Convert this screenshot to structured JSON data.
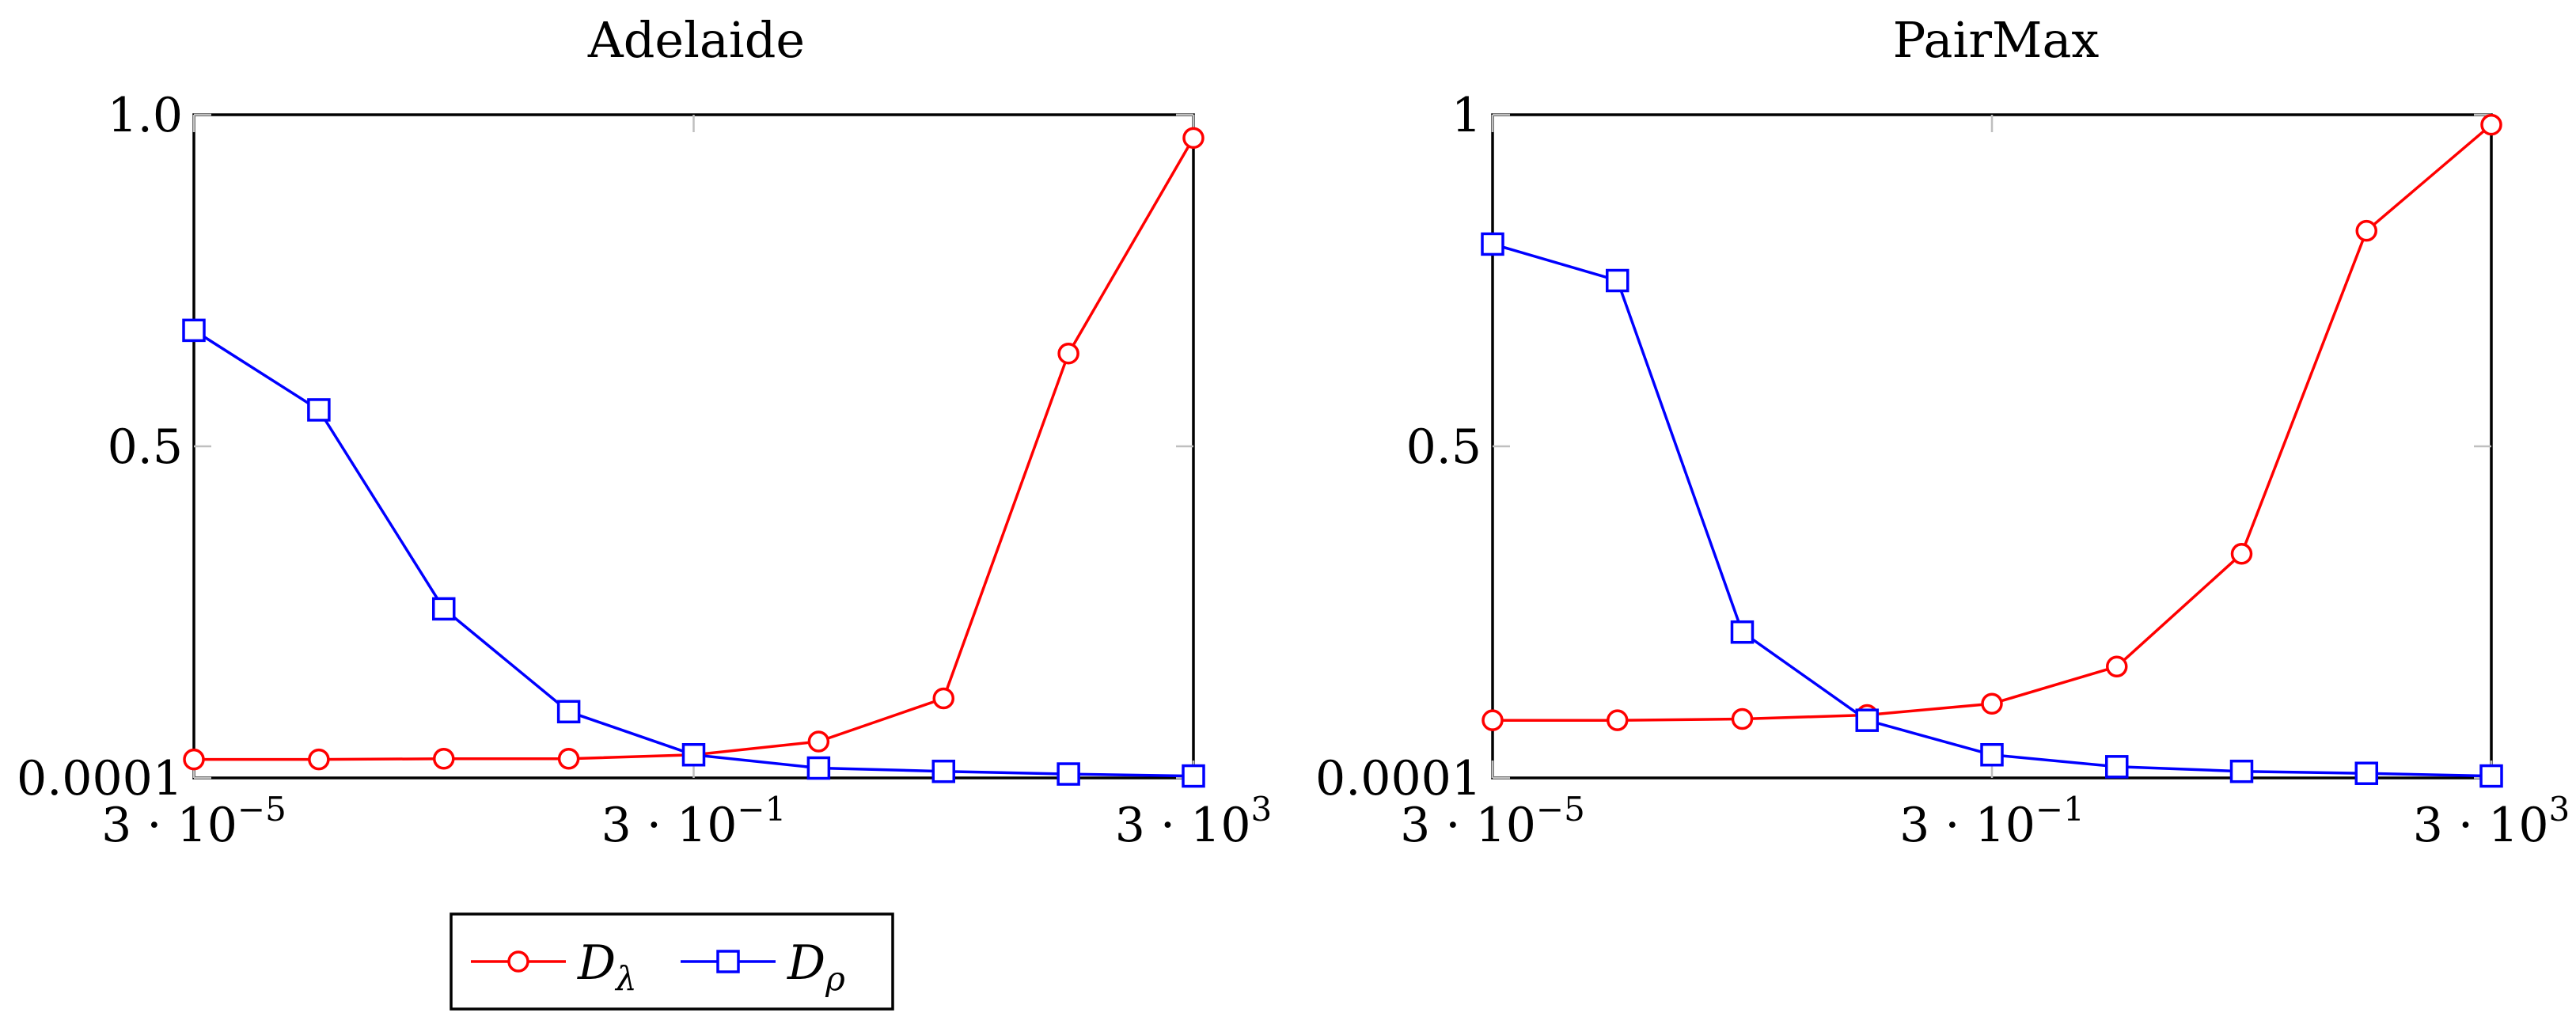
{
  "chart_data": [
    {
      "type": "line",
      "title": "Adelaide",
      "x_scale": "log",
      "x": [
        3e-05,
        0.0003,
        0.003,
        0.03,
        0.3,
        3,
        30,
        300,
        3000
      ],
      "xticks": [
        "3 · 10⁻⁵",
        "3 · 10⁻¹",
        "3 · 10³"
      ],
      "xtick_values": [
        3e-05,
        0.3,
        3000
      ],
      "ylim": [
        0.0001,
        1.0
      ],
      "yticks": [
        "0.0001",
        "0.5",
        "1.0"
      ],
      "ytick_values": [
        0.0001,
        0.5,
        1.0
      ],
      "grid": "major ticks",
      "series": [
        {
          "name": "Dλ",
          "color": "#ff0000",
          "marker": "circle",
          "values": [
            0.028,
            0.028,
            0.029,
            0.029,
            0.035,
            0.055,
            0.12,
            0.64,
            0.965
          ]
        },
        {
          "name": "Dρ",
          "color": "#0000ff",
          "marker": "square",
          "values": [
            0.675,
            0.555,
            0.255,
            0.1,
            0.035,
            0.015,
            0.01,
            0.006,
            0.003
          ]
        }
      ]
    },
    {
      "type": "line",
      "title": "PairMax",
      "x_scale": "log",
      "x": [
        3e-05,
        0.0003,
        0.003,
        0.03,
        0.3,
        3,
        30,
        300,
        3000
      ],
      "xticks": [
        "3 · 10⁻⁵",
        "3 · 10⁻¹",
        "3 · 10³"
      ],
      "xtick_values": [
        3e-05,
        0.3,
        3000
      ],
      "ylim": [
        0.0001,
        1.0
      ],
      "yticks": [
        "0.0001",
        "0.5",
        "1"
      ],
      "ytick_values": [
        0.0001,
        0.5,
        1.0
      ],
      "grid": "major ticks",
      "series": [
        {
          "name": "Dλ",
          "color": "#ff0000",
          "marker": "circle",
          "values": [
            0.087,
            0.087,
            0.089,
            0.095,
            0.112,
            0.168,
            0.338,
            0.825,
            0.985
          ]
        },
        {
          "name": "Dρ",
          "color": "#0000ff",
          "marker": "square",
          "values": [
            0.805,
            0.75,
            0.22,
            0.087,
            0.035,
            0.017,
            0.01,
            0.007,
            0.003
          ]
        }
      ]
    }
  ],
  "legend": {
    "placement": "bottom-left",
    "items": [
      {
        "label": "Dλ",
        "color": "#ff0000",
        "marker": "circle"
      },
      {
        "label": "Dρ",
        "color": "#0000ff",
        "marker": "square"
      }
    ]
  }
}
